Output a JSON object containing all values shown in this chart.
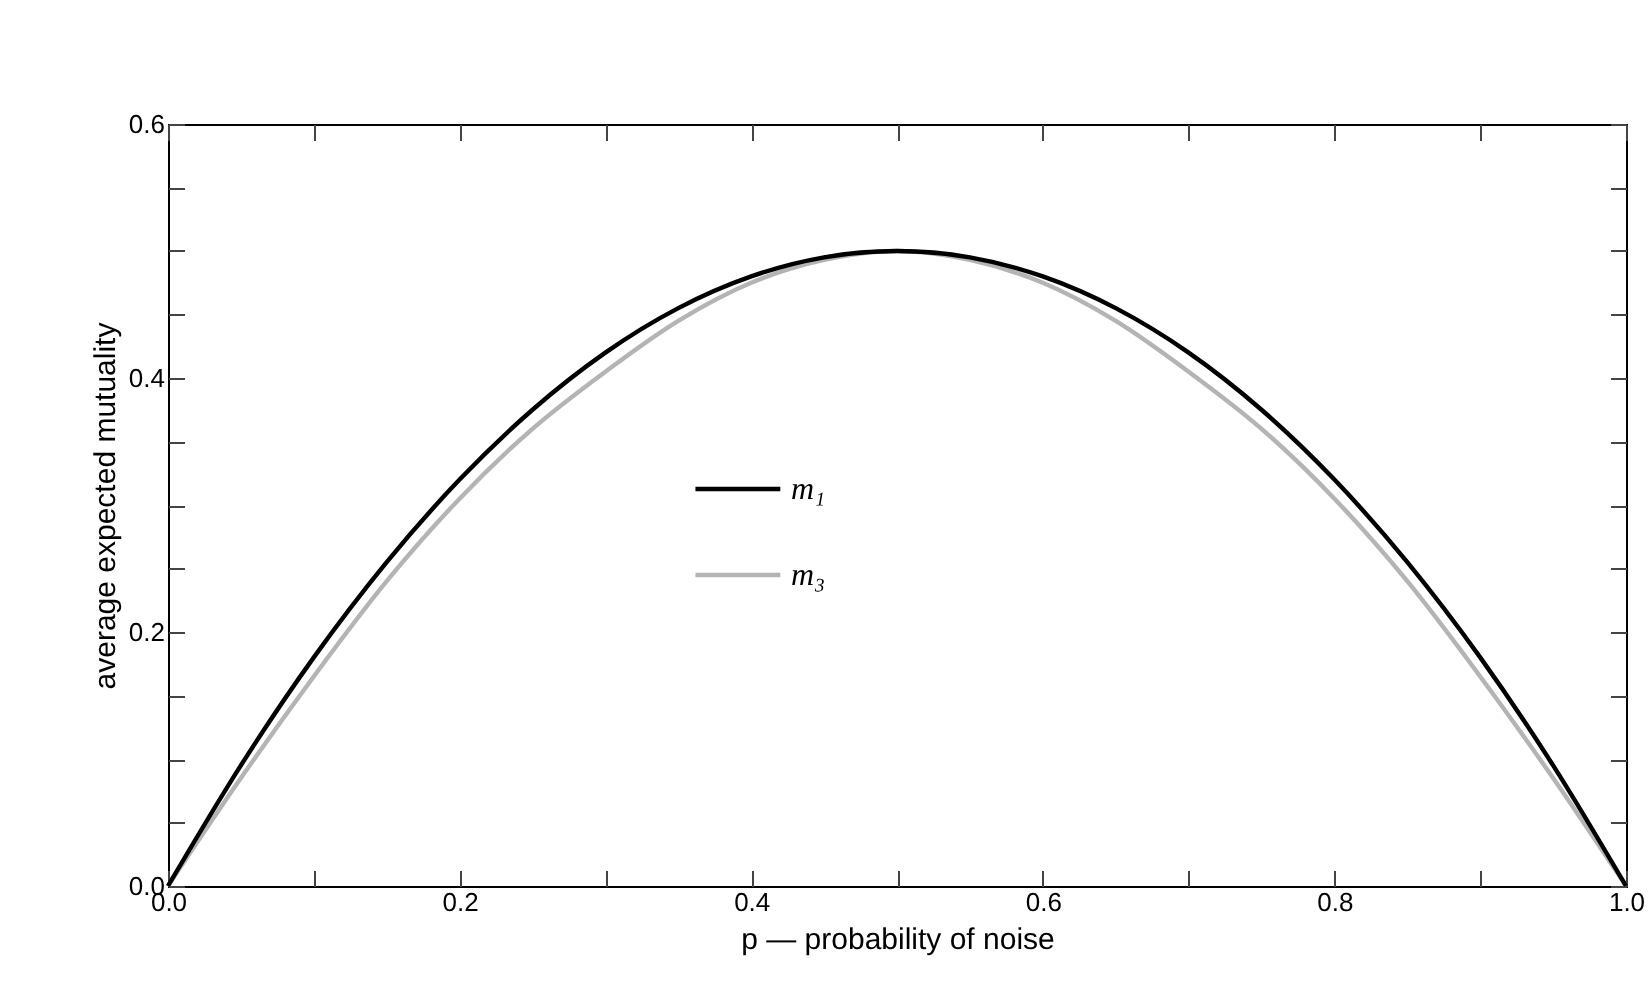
{
  "chart_data": {
    "type": "line",
    "xlabel": "p — probability of noise",
    "ylabel": "average expected mutuality",
    "x": [
      0,
      0.05,
      0.1,
      0.15,
      0.2,
      0.25,
      0.3,
      0.35,
      0.4,
      0.45,
      0.5,
      0.55,
      0.6,
      0.65,
      0.7,
      0.75,
      0.8,
      0.85,
      0.9,
      0.95,
      1
    ],
    "series": [
      {
        "name": "m₁",
        "color": "#000000",
        "values": [
          0,
          0.095,
          0.18,
          0.255,
          0.32,
          0.375,
          0.42,
          0.455,
          0.48,
          0.495,
          0.5,
          0.495,
          0.48,
          0.455,
          0.42,
          0.375,
          0.32,
          0.255,
          0.18,
          0.095,
          0
        ]
      },
      {
        "name": "m₃",
        "color": "#b4b4b4",
        "values": [
          0,
          0.085,
          0.165,
          0.24,
          0.305,
          0.36,
          0.405,
          0.445,
          0.475,
          0.493,
          0.5,
          0.493,
          0.475,
          0.445,
          0.405,
          0.36,
          0.305,
          0.24,
          0.165,
          0.085,
          0
        ]
      }
    ],
    "xlim": [
      0,
      1
    ],
    "ylim": [
      0,
      0.6
    ],
    "xticks": [
      {
        "value": 0,
        "label": "0.0"
      },
      {
        "value": 0.1,
        "label": null
      },
      0.2,
      {
        "value": 0.3,
        "label": null
      },
      0.4,
      {
        "value": 0.5,
        "label": null
      },
      0.6,
      {
        "value": 0.7,
        "label": null
      },
      0.8,
      {
        "value": 0.9,
        "label": null
      },
      {
        "value": 1,
        "label": "1.0"
      }
    ],
    "yticks": [
      {
        "value": 0,
        "label": "0.0"
      },
      {
        "value": 0.05,
        "label": null
      },
      {
        "value": 0.1,
        "label": null
      },
      {
        "value": 0.15,
        "label": null
      },
      0.2,
      {
        "value": 0.25,
        "label": null
      },
      {
        "value": 0.3,
        "label": null
      },
      {
        "value": 0.35,
        "label": null
      },
      0.4,
      {
        "value": 0.45,
        "label": null
      },
      {
        "value": 0.5,
        "label": null
      },
      {
        "value": 0.55,
        "label": null
      },
      0.6
    ],
    "legend": "center",
    "line_style": "solid",
    "grid": false
  }
}
